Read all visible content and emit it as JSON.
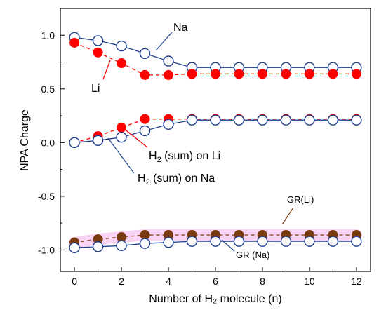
{
  "chart_data": {
    "type": "line",
    "xlabel": "Number of H₂ molecule (n)",
    "ylabel": "NPA Charge",
    "xlim": [
      -0.6,
      12.6
    ],
    "ylim": [
      -1.2,
      1.25
    ],
    "xticks": [
      "0",
      "2",
      "4",
      "6",
      "8",
      "10",
      "12"
    ],
    "yticks": [
      "1.0",
      "0.5",
      "0.0",
      "-0.5",
      "-1.0"
    ],
    "x": [
      0,
      1,
      2,
      3,
      4,
      5,
      6,
      7,
      8,
      9,
      10,
      11,
      12
    ],
    "series": [
      {
        "name": "Na",
        "values": [
          0.98,
          0.95,
          0.9,
          0.83,
          0.76,
          0.7,
          0.7,
          0.7,
          0.7,
          0.7,
          0.7,
          0.7,
          0.7
        ],
        "color": "#1f3f8c",
        "marker": "open-circle",
        "line": "solid"
      },
      {
        "name": "Li",
        "values": [
          0.93,
          0.84,
          0.74,
          0.63,
          0.63,
          0.64,
          0.64,
          0.64,
          0.64,
          0.64,
          0.64,
          0.64,
          0.64
        ],
        "color": "#ff0000",
        "marker": "filled-circle",
        "line": "dashed"
      },
      {
        "name": "H2 (sum) on Li",
        "values": [
          0.0,
          0.06,
          0.14,
          0.22,
          0.22,
          0.22,
          0.22,
          0.22,
          0.22,
          0.22,
          0.22,
          0.22,
          0.22
        ],
        "color": "#ff0000",
        "marker": "filled-circle",
        "line": "dashed"
      },
      {
        "name": "H2 (sum) on Na",
        "values": [
          0.0,
          0.02,
          0.05,
          0.11,
          0.17,
          0.21,
          0.21,
          0.21,
          0.21,
          0.21,
          0.21,
          0.21,
          0.21
        ],
        "color": "#1f3f8c",
        "marker": "open-circle",
        "line": "solid"
      },
      {
        "name": "GR(Li)",
        "values": [
          -0.93,
          -0.9,
          -0.88,
          -0.86,
          -0.86,
          -0.86,
          -0.86,
          -0.86,
          -0.86,
          -0.86,
          -0.86,
          -0.86,
          -0.86
        ],
        "color": "#7a3a10",
        "marker": "filled-circle",
        "line": "dashed",
        "halo": "#f8c8f0"
      },
      {
        "name": "GR (Na)",
        "values": [
          -0.98,
          -0.97,
          -0.96,
          -0.94,
          -0.93,
          -0.92,
          -0.92,
          -0.92,
          -0.92,
          -0.92,
          -0.92,
          -0.92,
          -0.92
        ],
        "color": "#1f3f8c",
        "marker": "open-circle",
        "line": "solid"
      }
    ],
    "annotations": [
      {
        "text": "Na"
      },
      {
        "text": "Li"
      },
      {
        "main": "H",
        "sub": "2",
        "rest": " (sum) on Li"
      },
      {
        "main": "H",
        "sub": "2",
        "rest": " (sum) on Na"
      },
      {
        "text": "GR(Li)"
      },
      {
        "text": "GR (Na)"
      }
    ],
    "grid": false,
    "legend": "none"
  }
}
